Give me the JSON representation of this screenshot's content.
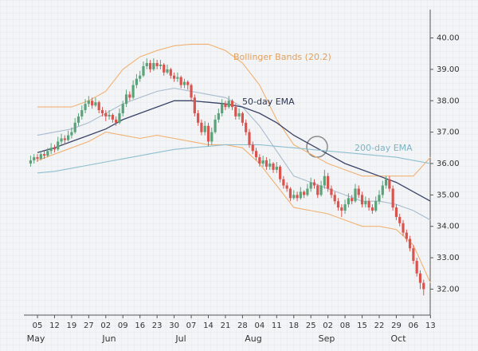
{
  "chart_data": {
    "type": "candlestick",
    "categories": [
      "05",
      "12",
      "19",
      "27",
      "02",
      "09",
      "16",
      "23",
      "30",
      "07",
      "14",
      "21",
      "28",
      "04",
      "11",
      "18",
      "25",
      "02",
      "08",
      "15",
      "22",
      "29",
      "06",
      "13"
    ],
    "months": [
      "May",
      "Jun",
      "Jul",
      "Aug",
      "Sep",
      "Oct"
    ],
    "ylim": [
      31.3,
      40.7
    ],
    "yticks": [
      {
        "value": 32,
        "label": "32.00"
      },
      {
        "value": 33,
        "label": "33.00"
      },
      {
        "value": 34,
        "label": "34.00"
      },
      {
        "value": 35,
        "label": "35.00"
      },
      {
        "value": 36,
        "label": "36.00"
      },
      {
        "value": 37,
        "label": "37.00"
      },
      {
        "value": 38,
        "label": "38.00"
      },
      {
        "value": 39,
        "label": "39.00"
      },
      {
        "value": 40,
        "label": "40.00"
      }
    ],
    "candles": {
      "up_color": "#5aa37a",
      "down_color": "#d9534f",
      "ohlc": [
        [
          36.0,
          36.25,
          35.9,
          36.1
        ],
        [
          36.1,
          36.3,
          36.0,
          36.2
        ],
        [
          36.2,
          36.3,
          36.05,
          36.15
        ],
        [
          36.15,
          36.4,
          36.1,
          36.3
        ],
        [
          36.3,
          36.4,
          36.15,
          36.25
        ],
        [
          36.25,
          36.5,
          36.2,
          36.4
        ],
        [
          36.4,
          36.65,
          36.3,
          36.5
        ],
        [
          36.5,
          36.6,
          36.35,
          36.45
        ],
        [
          36.45,
          36.85,
          36.4,
          36.7
        ],
        [
          36.7,
          36.95,
          36.6,
          36.8
        ],
        [
          36.8,
          36.9,
          36.6,
          36.75
        ],
        [
          36.75,
          37.05,
          36.7,
          36.9
        ],
        [
          36.9,
          37.15,
          36.8,
          37.0
        ],
        [
          37.0,
          37.45,
          36.95,
          37.3
        ],
        [
          37.3,
          37.6,
          37.2,
          37.5
        ],
        [
          37.5,
          37.85,
          37.4,
          37.7
        ],
        [
          37.7,
          38.05,
          37.6,
          37.9
        ],
        [
          37.9,
          38.15,
          37.8,
          38.0
        ],
        [
          38.0,
          38.1,
          37.75,
          37.85
        ],
        [
          37.85,
          38.1,
          37.8,
          37.95
        ],
        [
          37.95,
          38.0,
          37.6,
          37.7
        ],
        [
          37.7,
          37.8,
          37.5,
          37.6
        ],
        [
          37.6,
          37.7,
          37.35,
          37.5
        ],
        [
          37.5,
          37.7,
          37.4,
          37.55
        ],
        [
          37.55,
          37.6,
          37.3,
          37.4
        ],
        [
          37.4,
          37.5,
          37.2,
          37.3
        ],
        [
          37.3,
          37.75,
          37.25,
          37.6
        ],
        [
          37.6,
          38.0,
          37.5,
          37.9
        ],
        [
          37.9,
          38.35,
          37.8,
          38.2
        ],
        [
          38.2,
          38.3,
          38.0,
          38.1
        ],
        [
          38.1,
          38.65,
          38.05,
          38.5
        ],
        [
          38.5,
          38.85,
          38.4,
          38.7
        ],
        [
          38.7,
          38.95,
          38.6,
          38.8
        ],
        [
          38.8,
          39.25,
          38.75,
          39.1
        ],
        [
          39.1,
          39.35,
          39.0,
          39.2
        ],
        [
          39.2,
          39.3,
          38.9,
          39.0
        ],
        [
          39.0,
          39.35,
          38.95,
          39.2
        ],
        [
          39.2,
          39.3,
          39.0,
          39.1
        ],
        [
          39.1,
          39.3,
          39.0,
          39.15
        ],
        [
          39.15,
          39.2,
          38.8,
          38.9
        ],
        [
          38.9,
          39.15,
          38.85,
          39.0
        ],
        [
          39.0,
          39.05,
          38.7,
          38.8
        ],
        [
          38.8,
          38.9,
          38.6,
          38.7
        ],
        [
          38.7,
          38.9,
          38.6,
          38.75
        ],
        [
          38.75,
          38.8,
          38.4,
          38.5
        ],
        [
          38.5,
          38.7,
          38.4,
          38.6
        ],
        [
          38.6,
          38.65,
          38.35,
          38.5
        ],
        [
          38.5,
          38.55,
          38.0,
          38.1
        ],
        [
          38.1,
          38.2,
          37.5,
          37.6
        ],
        [
          37.6,
          37.7,
          37.2,
          37.3
        ],
        [
          37.3,
          37.4,
          36.9,
          37.0
        ],
        [
          37.0,
          37.35,
          36.9,
          37.2
        ],
        [
          37.2,
          37.3,
          36.55,
          36.7
        ],
        [
          36.7,
          37.15,
          36.6,
          37.0
        ],
        [
          37.0,
          37.55,
          36.95,
          37.4
        ],
        [
          37.4,
          37.75,
          37.3,
          37.6
        ],
        [
          37.6,
          38.05,
          37.5,
          37.9
        ],
        [
          37.9,
          38.0,
          37.7,
          37.8
        ],
        [
          37.8,
          38.15,
          37.75,
          38.0
        ],
        [
          38.0,
          38.05,
          37.7,
          37.8
        ],
        [
          37.8,
          37.9,
          37.4,
          37.5
        ],
        [
          37.5,
          37.75,
          37.4,
          37.6
        ],
        [
          37.6,
          37.65,
          37.2,
          37.3
        ],
        [
          37.3,
          37.4,
          36.9,
          37.0
        ],
        [
          37.0,
          37.1,
          36.5,
          36.6
        ],
        [
          36.6,
          36.7,
          36.3,
          36.4
        ],
        [
          36.4,
          36.5,
          36.1,
          36.2
        ],
        [
          36.2,
          36.3,
          35.9,
          36.0
        ],
        [
          36.0,
          36.25,
          35.9,
          36.1
        ],
        [
          36.1,
          36.2,
          35.8,
          35.9
        ],
        [
          35.9,
          36.15,
          35.8,
          36.0
        ],
        [
          36.0,
          36.05,
          35.7,
          35.8
        ],
        [
          35.8,
          36.05,
          35.7,
          35.9
        ],
        [
          35.9,
          35.95,
          35.4,
          35.5
        ],
        [
          35.5,
          35.6,
          35.2,
          35.3
        ],
        [
          35.3,
          35.4,
          35.1,
          35.2
        ],
        [
          35.2,
          35.25,
          34.8,
          34.9
        ],
        [
          34.9,
          35.15,
          34.85,
          35.0
        ],
        [
          35.0,
          35.1,
          34.8,
          34.9
        ],
        [
          34.9,
          35.25,
          34.85,
          35.1
        ],
        [
          35.1,
          35.15,
          34.9,
          35.0
        ],
        [
          35.0,
          35.35,
          34.95,
          35.2
        ],
        [
          35.2,
          35.55,
          35.1,
          35.4
        ],
        [
          35.4,
          35.5,
          35.2,
          35.3
        ],
        [
          35.3,
          35.35,
          34.9,
          35.0
        ],
        [
          35.0,
          35.45,
          34.95,
          35.3
        ],
        [
          35.3,
          35.8,
          35.2,
          35.6
        ],
        [
          35.6,
          35.7,
          35.1,
          35.2
        ],
        [
          35.2,
          35.3,
          34.9,
          35.0
        ],
        [
          35.0,
          35.1,
          34.7,
          34.8
        ],
        [
          34.8,
          34.9,
          34.5,
          34.6
        ],
        [
          34.6,
          34.7,
          34.3,
          34.5
        ],
        [
          34.5,
          34.85,
          34.4,
          34.7
        ],
        [
          34.7,
          35.05,
          34.6,
          34.9
        ],
        [
          34.9,
          35.0,
          34.7,
          34.8
        ],
        [
          34.8,
          35.35,
          34.75,
          35.2
        ],
        [
          35.2,
          35.3,
          34.9,
          35.0
        ],
        [
          35.0,
          35.1,
          34.6,
          34.7
        ],
        [
          34.7,
          34.95,
          34.6,
          34.8
        ],
        [
          34.8,
          34.9,
          34.5,
          34.6
        ],
        [
          34.6,
          34.7,
          34.4,
          34.5
        ],
        [
          34.5,
          34.95,
          34.45,
          34.8
        ],
        [
          34.8,
          35.15,
          34.7,
          35.0
        ],
        [
          35.0,
          35.45,
          34.9,
          35.3
        ],
        [
          35.3,
          35.6,
          35.2,
          35.5
        ],
        [
          35.5,
          35.6,
          35.1,
          35.2
        ],
        [
          35.2,
          35.3,
          34.5,
          34.6
        ],
        [
          34.6,
          34.7,
          34.2,
          34.3
        ],
        [
          34.3,
          34.4,
          34.0,
          34.1
        ],
        [
          34.1,
          34.2,
          33.7,
          33.8
        ],
        [
          33.8,
          33.9,
          33.5,
          33.6
        ],
        [
          33.6,
          33.7,
          33.2,
          33.3
        ],
        [
          33.3,
          33.4,
          32.8,
          32.9
        ],
        [
          32.9,
          33.0,
          32.4,
          32.5
        ],
        [
          32.5,
          32.6,
          32.0,
          32.2
        ],
        [
          32.2,
          32.3,
          31.8,
          32.0
        ]
      ]
    },
    "series": [
      {
        "name": "Bollinger Bands (20.2)",
        "color": "#f1b274",
        "values": [
          37.8,
          37.8,
          37.8,
          38.0,
          38.3,
          39.0,
          39.4,
          39.6,
          39.75,
          39.8,
          39.8,
          39.6,
          39.2,
          38.5,
          37.4,
          36.6,
          36.3,
          36.0,
          35.8,
          35.6,
          35.6,
          35.6,
          35.6,
          36.2
        ]
      },
      {
        "color": "#f1b274",
        "values": [
          36.1,
          36.3,
          36.5,
          36.7,
          37.0,
          36.9,
          36.8,
          36.9,
          36.8,
          36.7,
          36.6,
          36.6,
          36.5,
          36.0,
          35.3,
          34.6,
          34.5,
          34.4,
          34.2,
          34.0,
          34.0,
          33.9,
          33.4,
          32.2
        ]
      },
      {
        "color": "#a9bccf",
        "values": [
          36.9,
          37.0,
          37.1,
          37.3,
          37.6,
          37.9,
          38.1,
          38.3,
          38.4,
          38.3,
          38.2,
          38.1,
          37.8,
          37.2,
          36.4,
          35.6,
          35.4,
          35.2,
          35.0,
          34.8,
          34.8,
          34.7,
          34.5,
          34.2
        ]
      },
      {
        "name": "50-day EMA",
        "color": "#3a4466",
        "values": [
          36.35,
          36.5,
          36.7,
          36.9,
          37.1,
          37.4,
          37.6,
          37.8,
          38.0,
          38.0,
          37.95,
          37.9,
          37.8,
          37.6,
          37.3,
          36.9,
          36.6,
          36.3,
          36.0,
          35.8,
          35.6,
          35.4,
          35.1,
          34.8
        ]
      },
      {
        "name": "200-day EMA",
        "color": "#8fbfcf",
        "values": [
          35.7,
          35.75,
          35.85,
          35.95,
          36.05,
          36.15,
          36.25,
          36.35,
          36.45,
          36.5,
          36.55,
          36.6,
          36.6,
          36.6,
          36.55,
          36.5,
          36.45,
          36.4,
          36.35,
          36.3,
          36.25,
          36.2,
          36.1,
          36.0
        ]
      }
    ]
  }
}
